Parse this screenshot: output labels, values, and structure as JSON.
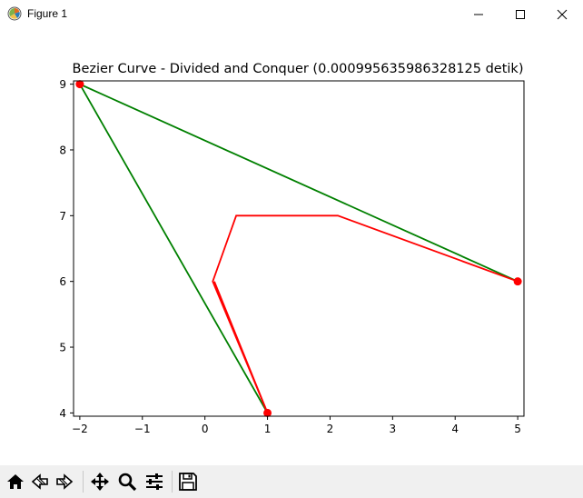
{
  "window": {
    "title": "Figure 1",
    "icons": [
      "matplotlib-app-icon",
      "minimize-icon",
      "maximize-icon",
      "close-icon"
    ]
  },
  "chart_data": {
    "type": "line",
    "title": "Bezier Curve - Divided and Conquer (0.000995635986328125 detik)",
    "xlabel": "",
    "ylabel": "",
    "xlim": [
      -2.1,
      5.1
    ],
    "ylim": [
      3.95,
      9.05
    ],
    "x_ticks": [
      -2,
      -1,
      0,
      1,
      2,
      3,
      4,
      5
    ],
    "y_ticks": [
      4,
      5,
      6,
      7,
      8,
      9
    ],
    "x_tick_labels": [
      "−2",
      "−1",
      "0",
      "1",
      "2",
      "3",
      "4",
      "5"
    ],
    "y_tick_labels": [
      "4",
      "5",
      "6",
      "7",
      "8",
      "9"
    ],
    "grid": false,
    "series": [
      {
        "color": "#008000",
        "style": "line",
        "x": [
          1,
          -2,
          5
        ],
        "y": [
          4,
          9,
          6
        ]
      },
      {
        "color": "#ff0000",
        "style": "line",
        "x": [
          1,
          0.125,
          0.5,
          2.125,
          5
        ],
        "y": [
          4,
          6,
          7,
          7,
          6
        ]
      },
      {
        "color": "#ff0000",
        "style": "line",
        "x": [
          1,
          0.15
        ],
        "y": [
          4,
          6
        ]
      },
      {
        "color": "#ff0000",
        "style": "markers",
        "x": [
          -2,
          1,
          5
        ],
        "y": [
          9,
          4,
          6
        ]
      }
    ]
  },
  "toolbar": {
    "icons": [
      "home-icon",
      "back-icon",
      "forward-icon",
      "pan-icon",
      "zoom-icon",
      "configure-subplots-icon",
      "save-icon"
    ]
  }
}
